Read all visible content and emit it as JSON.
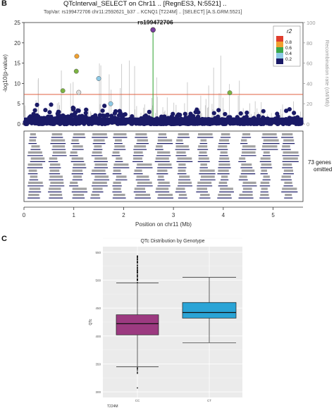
{
  "panel_b": {
    "letter": "B",
    "title": "QTcInterval_SELECT on Chr11 .. [RegnES3, N:5521] ..",
    "subtitle": "TopVar: rs199472706 chr11:2592621_b37 .. KCNQ1 [T224M] .. [SELECT] [A.S.GRM.5521]",
    "omitted_count": "73 genes",
    "omitted_word": "omitted"
  },
  "panel_c": {
    "letter": "C"
  },
  "colors": {
    "navy": "#1a1a66",
    "orange": "#f0a030",
    "threshold": "#e06040",
    "lead": "#7b3fa0",
    "green": "#2ca02c",
    "purple_box": "#9c3a80",
    "cyan_box": "#2aa4d6",
    "panel_bg": "#ebebeb"
  },
  "chart_data": [
    {
      "type": "scatter",
      "title": "",
      "xlabel": "Position on chr11 (Mb)",
      "ylabel": "-log10(p-value)",
      "y2label": "Recombination rate (cM/Mb)",
      "xlim": [
        0,
        5.6
      ],
      "ylim": [
        0,
        25
      ],
      "y2lim": [
        0,
        100
      ],
      "xticks": [
        "0",
        "1",
        "2",
        "3",
        "4",
        "5"
      ],
      "yticks": [
        "0",
        "5",
        "10",
        "15",
        "20",
        "25"
      ],
      "y2ticks": [
        "0",
        "20",
        "40",
        "60",
        "80",
        "100"
      ],
      "threshold": 7.3,
      "lead_label": "rs199472706",
      "lead": {
        "x": 2.59,
        "y": 23.2
      },
      "highlight_points": [
        {
          "x": 1.06,
          "y": 16.7,
          "r2": 0.7
        },
        {
          "x": 1.05,
          "y": 13.0,
          "r2": 0.5
        },
        {
          "x": 1.5,
          "y": 11.2,
          "r2": 0.3
        },
        {
          "x": 0.78,
          "y": 8.2,
          "r2": 0.5
        },
        {
          "x": 1.1,
          "y": 7.8,
          "r2": 0.1
        },
        {
          "x": 1.74,
          "y": 5.0,
          "r2": 0.3
        },
        {
          "x": 4.13,
          "y": 7.7,
          "r2": 0.5
        }
      ],
      "legend": {
        "title": "r2",
        "labels": [
          "0.8",
          "0.6",
          "0.4",
          "0.2"
        ],
        "position": "top-right"
      }
    },
    {
      "type": "box",
      "title": "QTc Distribution by Genotype",
      "xlabel": "T224M",
      "ylabel": "QTc",
      "categories": [
        "CC",
        "CT"
      ],
      "ylim": [
        290,
        560
      ],
      "yticks": [
        "300",
        "350",
        "400",
        "450",
        "500",
        "550"
      ],
      "series": [
        {
          "name": "CC",
          "min": 345,
          "q1": 402,
          "median": 422,
          "q3": 438,
          "max": 495
        },
        {
          "name": "CT",
          "min": 388,
          "q1": 432,
          "median": 442,
          "q3": 460,
          "max": 505
        }
      ],
      "grid": true
    }
  ]
}
